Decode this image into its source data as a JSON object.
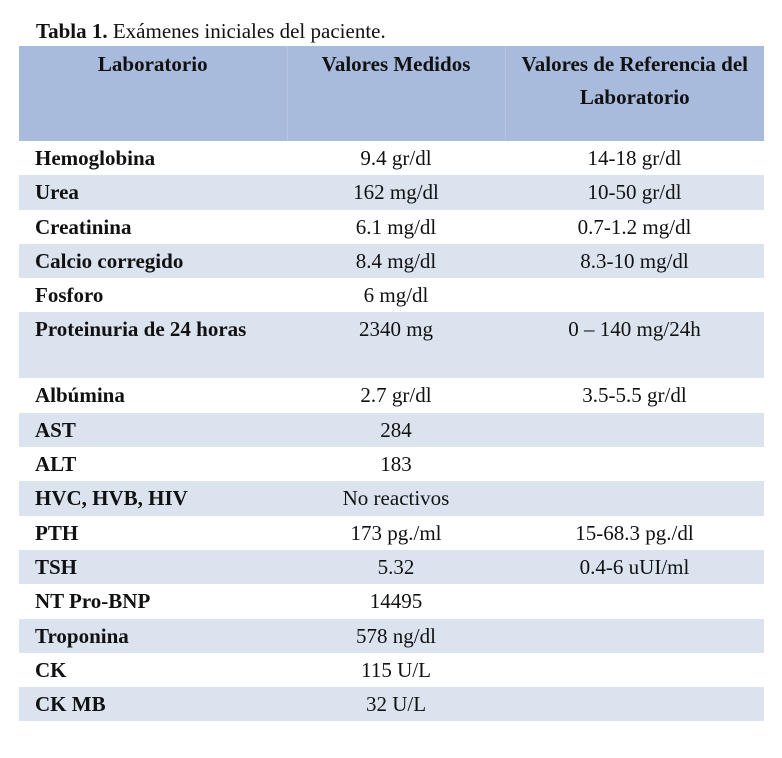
{
  "caption": {
    "label": "Tabla 1.",
    "text": " Exámenes iniciales del paciente."
  },
  "table": {
    "headers": [
      "Laboratorio",
      "Valores Medidos",
      "Valores de Referencia del Laboratorio"
    ],
    "rows": [
      {
        "name": "Hemoglobina",
        "value": "9.4 gr/dl",
        "reference": "14-18 gr/dl"
      },
      {
        "name": "Urea",
        "value": "162 mg/dl",
        "reference": "10-50 gr/dl"
      },
      {
        "name": "Creatinina",
        "value": "6.1 mg/dl",
        "reference": "0.7-1.2 mg/dl"
      },
      {
        "name": "Calcio corregido",
        "value": "8.4 mg/dl",
        "reference": "8.3-10 mg/dl"
      },
      {
        "name": "Fosforo",
        "value": "6 mg/dl",
        "reference": ""
      },
      {
        "name": "Proteinuria de 24 horas",
        "value": "2340 mg",
        "reference": "0 – 140 mg/24h"
      },
      {
        "name": "Albúmina",
        "value": "2.7 gr/dl",
        "reference": "3.5-5.5 gr/dl"
      },
      {
        "name": "AST",
        "value": "284",
        "reference": ""
      },
      {
        "name": "ALT",
        "value": "183",
        "reference": ""
      },
      {
        "name": "HVC, HVB, HIV",
        "value": "No reactivos",
        "reference": ""
      },
      {
        "name": "PTH",
        "value": "173 pg./ml",
        "reference": "15-68.3 pg./dl"
      },
      {
        "name": "TSH",
        "value": "5.32",
        "reference": "0.4-6 uUI/ml"
      },
      {
        "name": "NT Pro-BNP",
        "value": "14495",
        "reference": ""
      },
      {
        "name": "Troponina",
        "value": "578 ng/dl",
        "reference": ""
      },
      {
        "name": "CK",
        "value": "115 U/L",
        "reference": ""
      },
      {
        "name": "CK MB",
        "value": "32 U/L",
        "reference": ""
      }
    ]
  },
  "colors": {
    "header_bg": "#a9bbdc",
    "stripe_bg": "#dbe3ef",
    "text": "#111111"
  }
}
